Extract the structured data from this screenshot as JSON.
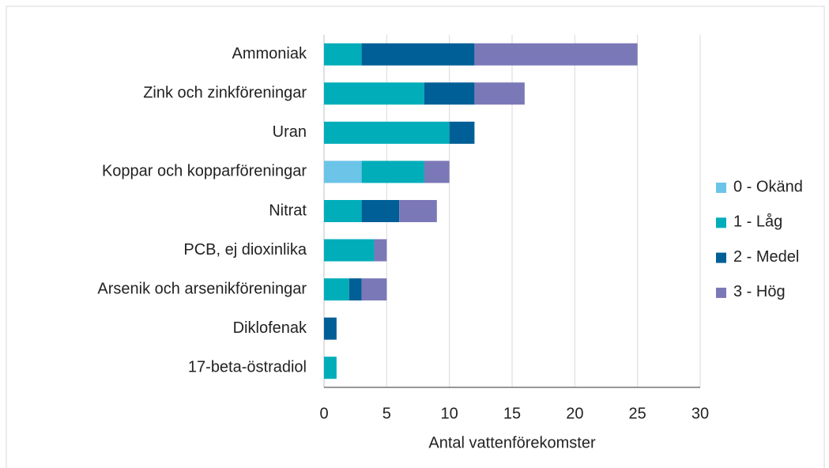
{
  "chart_data": {
    "type": "bar",
    "orientation": "horizontal",
    "stacked": true,
    "x_label": "Antal vattenförekomster",
    "categories": [
      "Ammoniak",
      "Zink och zinkföreningar",
      "Uran",
      "Koppar och kopparföreningar",
      "Nitrat",
      "PCB, ej dioxinlika",
      "Arsenik och arsenikföreningar",
      "Diklofenak",
      "17-beta-östradiol"
    ],
    "series": [
      {
        "name": "0 - Okänd",
        "color": "#6cc4e8",
        "values": [
          0,
          0,
          0,
          3,
          0,
          0,
          0,
          0,
          0
        ]
      },
      {
        "name": "1 - Låg",
        "color": "#00adb9",
        "values": [
          3,
          8,
          10,
          5,
          3,
          4,
          2,
          0,
          1
        ]
      },
      {
        "name": "2 - Medel",
        "color": "#005f96",
        "values": [
          9,
          4,
          2,
          0,
          3,
          0,
          1,
          1,
          0
        ]
      },
      {
        "name": "3 - Hög",
        "color": "#7b78b8",
        "values": [
          13,
          4,
          0,
          2,
          3,
          1,
          2,
          0,
          0
        ]
      }
    ],
    "xlim": [
      0,
      30
    ],
    "xticks": [
      0,
      5,
      10,
      15,
      20,
      25,
      30
    ],
    "grid": true,
    "legend": "right"
  }
}
